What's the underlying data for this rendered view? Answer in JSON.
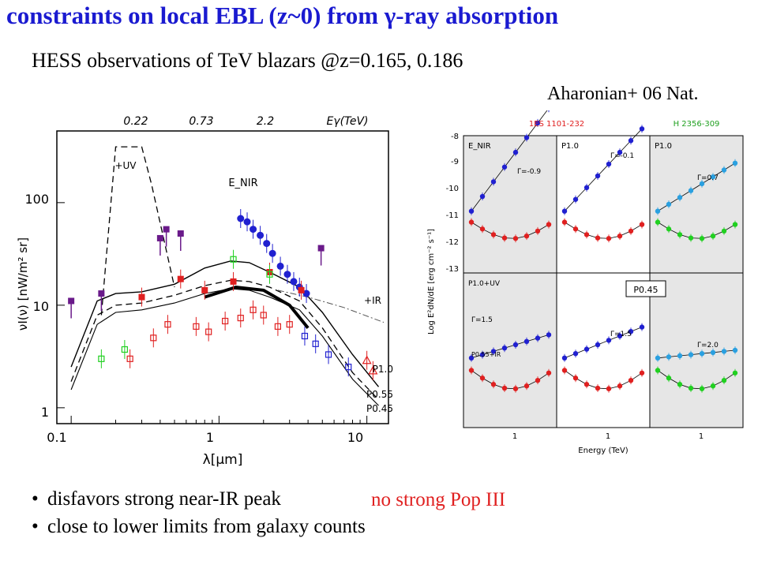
{
  "header": {
    "title": "constraints on local EBL (z~0) from γ-ray absorption",
    "subtitle": "HESS observations of TeV blazars @z=0.165, 0.186",
    "citation": "Aharonian+ 06 Nat."
  },
  "bullets": [
    "disfavors strong near-IR peak",
    "close to lower limits from galaxy counts"
  ],
  "note": "no strong Pop III",
  "colors": {
    "title": "#1a1ad0",
    "note": "#e02020",
    "red": "#e02020",
    "blue": "#2020d0",
    "green": "#20d020",
    "purple": "#6a1a8a",
    "lightblue": "#2aa0e0"
  },
  "chart_data": [
    {
      "type": "scatter",
      "xlabel": "λ[μm]",
      "ylabel": "νI(ν) [nW/m² sr]",
      "x_scale": "log",
      "y_scale": "log",
      "xlim": [
        0.08,
        14
      ],
      "ylim": [
        0.7,
        500
      ],
      "x_ticks": [
        "0.1",
        "1",
        "10"
      ],
      "y_ticks": [
        "1",
        "10",
        "100"
      ],
      "top_axis_label": "Eγ(TeV)",
      "top_ticks": [
        "0.22",
        "0.73",
        "2.2"
      ],
      "annotations": [
        "+UV",
        "E_NIR",
        "+IR"
      ],
      "curve_labels": [
        "P1.0",
        "P0.55",
        "P0.45"
      ],
      "series": [
        {
          "name": "P1.0",
          "style": "solid",
          "x": [
            0.1,
            0.15,
            0.2,
            0.3,
            0.5,
            0.8,
            1.2,
            1.6,
            2.2,
            3.5,
            5,
            8,
            12
          ],
          "y": [
            2.5,
            11,
            13,
            13.5,
            16,
            23,
            27,
            26,
            21,
            15,
            8.5,
            3.3,
            1.6
          ]
        },
        {
          "name": "P0.55",
          "style": "dashed",
          "x": [
            0.1,
            0.15,
            0.2,
            0.3,
            0.5,
            0.8,
            1.2,
            1.6,
            2.2,
            3.5,
            5,
            8,
            12
          ],
          "y": [
            1.8,
            8,
            10,
            10.5,
            12.5,
            15.5,
            17.5,
            17,
            15,
            11,
            6,
            2.2,
            1.2
          ]
        },
        {
          "name": "P0.45",
          "style": "solid-thin",
          "x": [
            0.1,
            0.15,
            0.2,
            0.3,
            0.5,
            0.8,
            1.2,
            1.6,
            2.2,
            3.5,
            5,
            8,
            12
          ],
          "y": [
            1.5,
            6.5,
            8.5,
            9,
            10.5,
            13,
            14.5,
            14,
            12,
            9,
            5,
            1.9,
            1.05
          ]
        },
        {
          "name": "+UV",
          "style": "dashed",
          "x": [
            0.16,
            0.2,
            0.3,
            0.35,
            0.5
          ],
          "y": [
            8,
            350,
            350,
            150,
            15
          ]
        },
        {
          "name": "+IR",
          "style": "dashdot",
          "x": [
            2.5,
            4,
            7,
            13
          ],
          "y": [
            14,
            12,
            9.5,
            6.8
          ]
        },
        {
          "name": "upper-limit-band",
          "style": "thick",
          "x": [
            0.8,
            1.3,
            2.0,
            3.0,
            4.0
          ],
          "y": [
            12,
            15,
            14,
            10,
            6
          ]
        },
        {
          "name": "blue-points",
          "marker": "filled-circle",
          "color": "#2020d0",
          "x": [
            1.4,
            1.55,
            1.7,
            1.9,
            2.1,
            2.3,
            2.6,
            2.9,
            3.2,
            3.5,
            3.9
          ],
          "y": [
            70,
            65,
            55,
            48,
            40,
            32,
            24,
            20,
            17,
            15,
            13
          ]
        },
        {
          "name": "red-filled",
          "marker": "filled-square",
          "color": "#e02020",
          "x": [
            0.3,
            0.55,
            0.8,
            1.25,
            2.2,
            3.6
          ],
          "y": [
            12,
            18,
            14,
            17,
            21,
            14
          ]
        },
        {
          "name": "red-open",
          "marker": "open-square",
          "color": "#e02020",
          "x": [
            0.25,
            0.36,
            0.45,
            0.7,
            0.85,
            1.1,
            1.4,
            1.7,
            2.0,
            2.5,
            3.0
          ],
          "y": [
            3,
            4.8,
            6.5,
            6.2,
            5.5,
            7,
            7.5,
            9,
            8,
            6.2,
            6.5
          ]
        },
        {
          "name": "blue-open",
          "marker": "open-square",
          "color": "#2020d0",
          "x": [
            3.8,
            4.5,
            5.5,
            7.5
          ],
          "y": [
            5,
            4.2,
            3.3,
            2.5
          ]
        },
        {
          "name": "red-triangles",
          "marker": "open-triangle",
          "color": "#e02020",
          "x": [
            10,
            11
          ],
          "y": [
            2.9,
            2.3
          ]
        },
        {
          "name": "green-points",
          "marker": "open-square",
          "color": "#20d020",
          "x": [
            0.16,
            0.23,
            1.25,
            2.2
          ],
          "y": [
            3,
            3.7,
            28,
            20
          ]
        },
        {
          "name": "purple-upper-limits",
          "marker": "filled-square",
          "color": "#6a1a8a",
          "x": [
            0.1,
            0.16,
            0.4,
            0.44,
            0.55,
            4.9
          ],
          "y": [
            11,
            13,
            45,
            55,
            50,
            36
          ]
        }
      ]
    },
    {
      "type": "scatter",
      "panel_grid": "2x3",
      "xlabel": "Energy (TeV)",
      "ylabel": "Log E²dN/dE [erg cm⁻² s⁻¹]",
      "column_titles": [
        "1ES 1101-232",
        "H 2356-309"
      ],
      "panel_labels": [
        "E_NIR",
        "P1.0",
        "P1.0",
        "P1.0+UV",
        "P0.45",
        ""
      ],
      "gamma_labels": [
        "Γ=-0.9",
        "Γ=-0.1",
        "Γ=0.7",
        "Γ=1.5",
        "Γ=1.5",
        "Γ=2.0"
      ],
      "sub_label": "P0.55+IR",
      "y_ticks": [
        "-8",
        "-9",
        "-10",
        "-11",
        "-12",
        "-13"
      ],
      "x_tick": "1"
    }
  ]
}
